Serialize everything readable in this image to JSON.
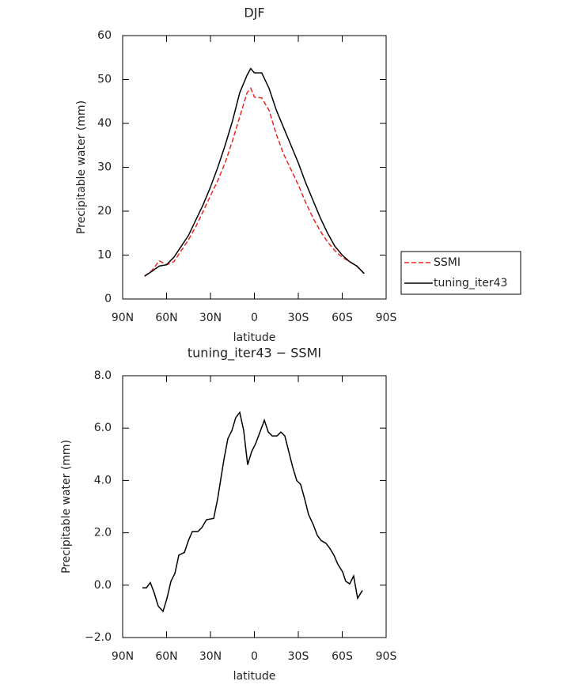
{
  "chart_data": [
    {
      "type": "line",
      "title": "DJF",
      "xlabel": "latitude",
      "ylabel": "Precipitable water (mm)",
      "x": [
        75,
        70,
        65,
        60,
        55,
        50,
        45,
        40,
        35,
        30,
        25,
        20,
        15,
        10,
        5,
        2.5,
        0,
        -5,
        -10,
        -15,
        -20,
        -25,
        -30,
        -35,
        -40,
        -45,
        -50,
        -55,
        -60,
        -65,
        -70,
        -75
      ],
      "series": [
        {
          "name": "SSMI",
          "color": "#e8281e",
          "linestyle": "dashed",
          "values": [
            5.2,
            6.5,
            8.7,
            7.8,
            8.5,
            11,
            13.5,
            16.5,
            20,
            23.5,
            27,
            31,
            36,
            41.5,
            47,
            48,
            46,
            45.8,
            43,
            37.5,
            33,
            29.5,
            26,
            22,
            18.5,
            15.5,
            13,
            11,
            9.5,
            8.5,
            7.5,
            5.8
          ]
        },
        {
          "name": "tuning_iter43",
          "color": "#000000",
          "linestyle": "solid",
          "values": [
            5.2,
            6.3,
            7.5,
            7.8,
            9.5,
            12,
            14.5,
            18,
            21.5,
            25.5,
            30,
            35,
            40.5,
            47,
            51,
            52.5,
            51.5,
            51.5,
            48,
            43,
            39,
            35,
            31,
            26.5,
            22.5,
            18.5,
            15,
            12,
            10,
            8.5,
            7.5,
            5.8
          ]
        }
      ],
      "xlim": [
        90,
        -90
      ],
      "xticks": [
        {
          "value": 90,
          "label": "90N"
        },
        {
          "value": 60,
          "label": "60N"
        },
        {
          "value": 30,
          "label": "30N"
        },
        0,
        {
          "value": -30,
          "label": "30S"
        },
        {
          "value": -60,
          "label": "60S"
        },
        {
          "value": -90,
          "label": "90S"
        }
      ],
      "ylim": [
        0,
        60
      ],
      "yticks": [
        0,
        10,
        20,
        30,
        40,
        50,
        60
      ],
      "legend": "right"
    },
    {
      "type": "line",
      "title": "tuning_iter43 − SSMI",
      "xlabel": "latitude",
      "ylabel": "Precipitable water (mm)",
      "x": [
        76.5,
        73.8,
        71.1,
        68.4,
        65.7,
        62.4,
        59.7,
        57.0,
        54.3,
        51.6,
        47.8,
        45.1,
        42.4,
        38.6,
        35.9,
        32.7,
        27.8,
        25.1,
        20.8,
        18.1,
        15.4,
        12.7,
        10.0,
        7.3,
        4.6,
        1.9,
        -0.8,
        -3.5,
        -6.8,
        -9.5,
        -12.2,
        -15.4,
        -18.1,
        -20.8,
        -23.5,
        -26.2,
        -28.9,
        -31.6,
        -34.3,
        -37.0,
        -40.3,
        -43.0,
        -45.7,
        -48.9,
        -51.6,
        -54.3,
        -57.0,
        -60.3,
        -62.4,
        -65.1,
        -67.8,
        -70.5,
        -73.8
      ],
      "values": [
        -0.1,
        -0.1,
        0.1,
        -0.3,
        -0.8,
        -1.0,
        -0.5,
        0.15,
        0.45,
        1.15,
        1.25,
        1.7,
        2.05,
        2.05,
        2.2,
        2.5,
        2.55,
        3.3,
        4.8,
        5.6,
        5.9,
        6.4,
        6.6,
        5.9,
        4.6,
        5.1,
        5.4,
        5.8,
        6.3,
        5.85,
        5.7,
        5.7,
        5.85,
        5.7,
        5.1,
        4.5,
        4.0,
        3.85,
        3.3,
        2.7,
        2.3,
        1.9,
        1.7,
        1.6,
        1.4,
        1.15,
        0.8,
        0.5,
        0.15,
        0.05,
        0.35,
        -0.5,
        -0.2
      ],
      "color": "#000000",
      "xlim": [
        90,
        -90
      ],
      "xticks": [
        {
          "value": 90,
          "label": "90N"
        },
        {
          "value": 60,
          "label": "60N"
        },
        {
          "value": 30,
          "label": "30N"
        },
        0,
        {
          "value": -30,
          "label": "30S"
        },
        {
          "value": -60,
          "label": "60S"
        },
        {
          "value": -90,
          "label": "90S"
        }
      ],
      "ylim": [
        -2,
        8
      ],
      "yticks": [
        {
          "value": -2,
          "label": "−2.0"
        },
        {
          "value": 0,
          "label": "0.0"
        },
        {
          "value": 2,
          "label": "2.0"
        },
        {
          "value": 4,
          "label": "4.0"
        },
        {
          "value": 6,
          "label": "6.0"
        },
        {
          "value": 8,
          "label": "8.0"
        }
      ]
    }
  ]
}
